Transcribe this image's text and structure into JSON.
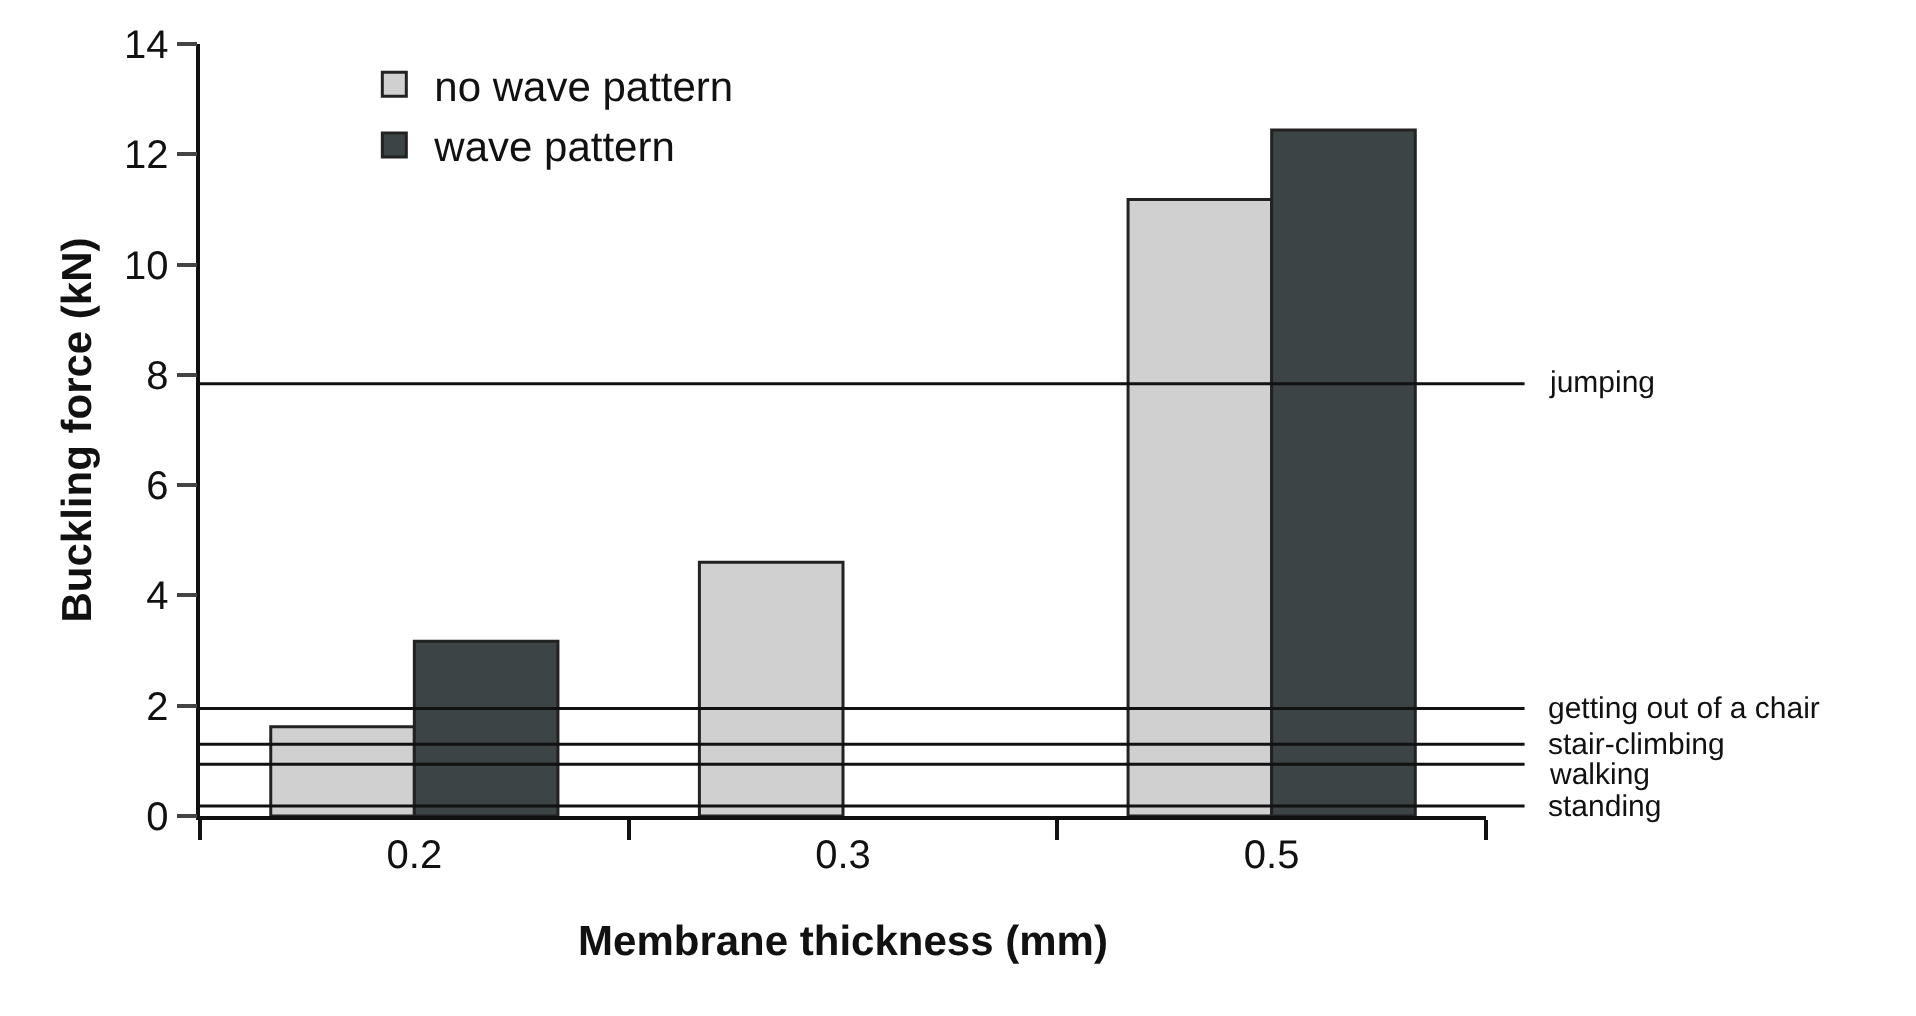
{
  "chart_data": {
    "type": "bar",
    "xlabel": "Membrane thickness (mm)",
    "ylabel": "Buckling force (kN)",
    "categories": [
      "0.2",
      "0.3",
      "0.5"
    ],
    "series": [
      {
        "name": "no wave pattern",
        "color": "#d0d0d0",
        "values": [
          1.62,
          4.6,
          11.18
        ]
      },
      {
        "name": "wave pattern",
        "color": "#3c4446",
        "values": [
          3.17,
          null,
          12.44
        ]
      }
    ],
    "ylim": [
      0,
      14
    ],
    "yticks": [
      0,
      2,
      4,
      6,
      8,
      10,
      12,
      14
    ],
    "legend": "top left",
    "ref_lines": [
      {
        "axis": "y",
        "value": 7.84,
        "label": "jumping"
      },
      {
        "axis": "y",
        "value": 1.95,
        "label": "getting out of a chair"
      },
      {
        "axis": "y",
        "value": 1.3,
        "label": "stair-climbing"
      },
      {
        "axis": "y",
        "value": 0.94,
        "label": "walking"
      },
      {
        "axis": "y",
        "value": 0.18,
        "label": "standing"
      }
    ]
  }
}
